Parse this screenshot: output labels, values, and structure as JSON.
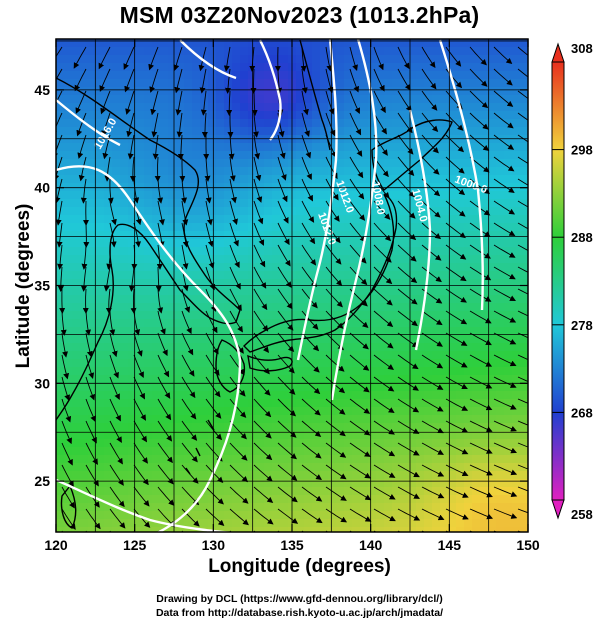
{
  "title": "MSM 03Z20Nov2023 (1013.2hPa)",
  "axes": {
    "xlabel": "Longitude (degrees)",
    "ylabel": "Latitude  (degrees)",
    "xlim": [
      120,
      150
    ],
    "ylim": [
      22.4,
      47.6
    ],
    "xticks": [
      120,
      125,
      130,
      135,
      140,
      145,
      150
    ],
    "yticks": [
      25,
      30,
      35,
      40,
      45
    ]
  },
  "colorbar": {
    "min": 258,
    "max": 308,
    "labels": [
      308,
      298,
      288,
      278,
      268,
      258
    ],
    "colors": {
      "top": "#e8301e",
      "upper": "#f0d23c",
      "middle": "#2ecf3a",
      "lower": "#20c8d8",
      "low": "#2040d0",
      "bottom": "#e020c0"
    }
  },
  "contour_labels": [
    "1012.0",
    "1008.0",
    "1004.0",
    "1000.0",
    "1012.0",
    "1016.0"
  ],
  "credits": {
    "line1": "Drawing by DCL (https://www.gfd-dennou.org/library/dcl/)",
    "line2": "Data from http://database.rish.kyoto-u.ac.jp/arch/jmadata/"
  }
}
